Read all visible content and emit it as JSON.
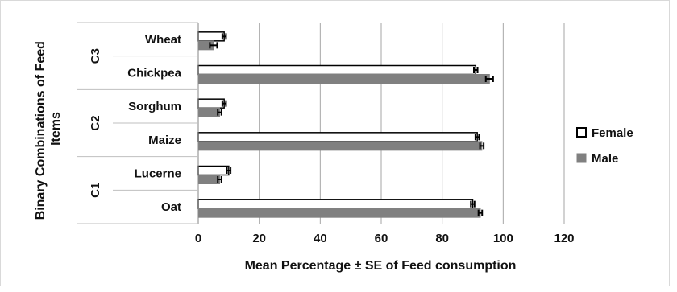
{
  "chart_data": {
    "type": "bar",
    "orientation": "horizontal",
    "title": "",
    "xlabel": "Mean Percentage ± SE of Feed consumption",
    "ylabel_lines": [
      "Binary Combinations of Feed",
      "Items"
    ],
    "xlim": [
      0,
      120
    ],
    "xticks": [
      0,
      20,
      40,
      60,
      80,
      100,
      120
    ],
    "grid": true,
    "legend_position": "right",
    "groups": [
      {
        "label": "C3",
        "categories": [
          "Wheat",
          "Chickpea"
        ]
      },
      {
        "label": "C2",
        "categories": [
          "Sorghum",
          "Maize"
        ]
      },
      {
        "label": "C1",
        "categories": [
          "Lucerne",
          "Oat"
        ]
      }
    ],
    "categories": [
      "Wheat",
      "Chickpea",
      "Sorghum",
      "Maize",
      "Lucerne",
      "Oat"
    ],
    "series": [
      {
        "name": "Female",
        "color": "#ffffff",
        "edge": "#000000",
        "values": [
          8.5,
          91,
          8.5,
          91.5,
          10,
          90
        ],
        "errors": [
          0.6,
          0.6,
          0.6,
          0.6,
          0.6,
          0.6
        ]
      },
      {
        "name": "Male",
        "color": "#808080",
        "edge": "#808080",
        "values": [
          5,
          95.5,
          7,
          93,
          7,
          92.5
        ],
        "errors": [
          1.2,
          1.2,
          0.6,
          0.6,
          0.6,
          0.6
        ]
      }
    ]
  }
}
